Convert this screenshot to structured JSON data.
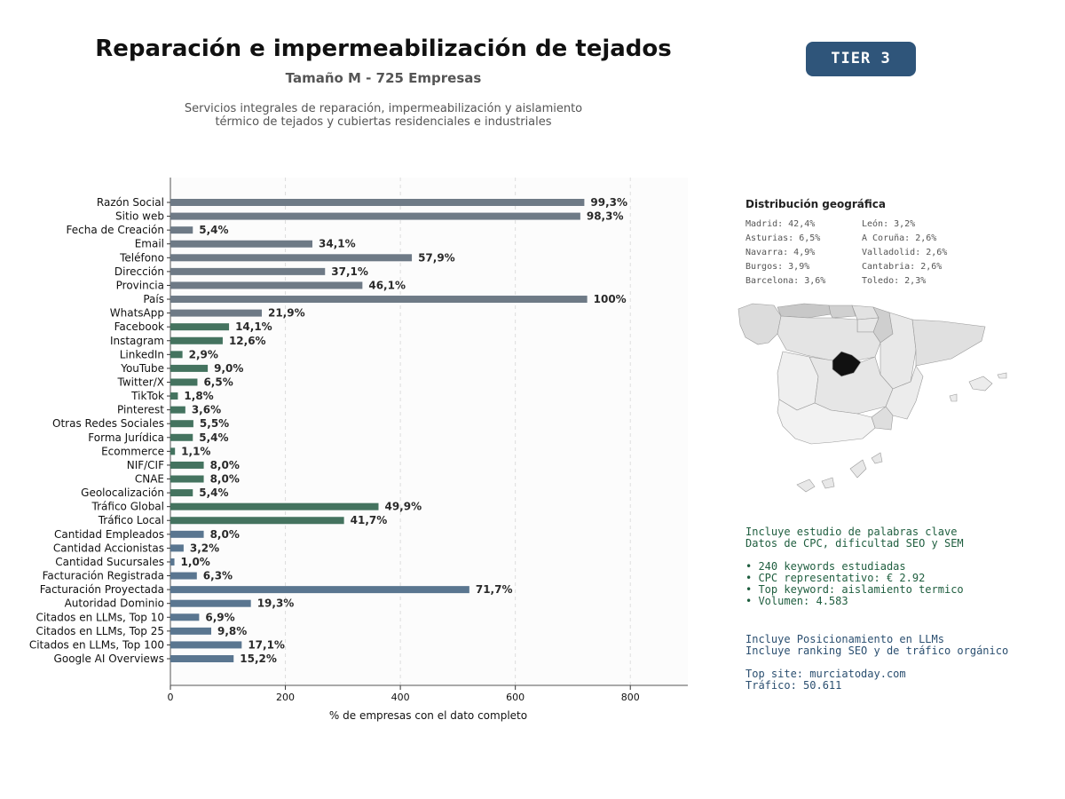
{
  "header": {
    "title": "Reparación e impermeabilización de tejados",
    "subtitle": "Tamaño M - 725 Empresas",
    "description_lines": [
      "Servicios integrales de reparación, impermeabilización y aislamiento",
      "térmico de tejados y cubiertas residenciales e industriales"
    ],
    "tier_badge": "TIER 3"
  },
  "colors": {
    "group_contact": "#6e7a86",
    "group_social_legal": "#44735f",
    "group_business": "#5a7690",
    "badge": "#2f557a",
    "map_highlight": "#111111"
  },
  "chart_data": {
    "type": "bar",
    "orientation": "horizontal",
    "xlabel": "% de empresas con el dato completo",
    "xlim": [
      0,
      900
    ],
    "xticks": [
      0,
      200,
      400,
      600,
      800
    ],
    "grid": "vertical dashed",
    "categories": [
      "Razón Social",
      "Sitio web",
      "Fecha de Creación",
      "Email",
      "Teléfono",
      "Dirección",
      "Provincia",
      "País",
      "WhatsApp",
      "Facebook",
      "Instagram",
      "LinkedIn",
      "YouTube",
      "Twitter/X",
      "TikTok",
      "Pinterest",
      "Otras Redes Sociales",
      "Forma Jurídica",
      "Ecommerce",
      "NIF/CIF",
      "CNAE",
      "Geolocalización",
      "Tráfico Global",
      "Tráfico Local",
      "Cantidad Empleados",
      "Cantidad Accionistas",
      "Cantidad Sucursales",
      "Facturación Registrada",
      "Facturación Proyectada",
      "Autoridad Dominio",
      "Citados en LLMs, Top 10",
      "Citados en LLMs, Top 25",
      "Citados en LLMs, Top 100",
      "Google AI Overviews"
    ],
    "values": [
      720,
      713,
      39,
      247,
      420,
      269,
      334,
      725,
      159,
      102,
      91,
      21,
      65,
      47,
      13,
      26,
      40,
      39,
      8,
      58,
      58,
      39,
      362,
      302,
      58,
      23,
      7,
      46,
      520,
      140,
      50,
      71,
      124,
      110
    ],
    "value_labels": [
      "99,3%",
      "98,3%",
      "5,4%",
      "34,1%",
      "57,9%",
      "37,1%",
      "46,1%",
      "100%",
      "21,9%",
      "14,1%",
      "12,6%",
      "2,9%",
      "9,0%",
      "6,5%",
      "1,8%",
      "3,6%",
      "5,5%",
      "5,4%",
      "1,1%",
      "8,0%",
      "8,0%",
      "5,4%",
      "49,9%",
      "41,7%",
      "8,0%",
      "3,2%",
      "1,0%",
      "6,3%",
      "71,7%",
      "19,3%",
      "6,9%",
      "9,8%",
      "17,1%",
      "15,2%"
    ],
    "groups": [
      "contact",
      "contact",
      "contact",
      "contact",
      "contact",
      "contact",
      "contact",
      "contact",
      "contact",
      "social_legal",
      "social_legal",
      "social_legal",
      "social_legal",
      "social_legal",
      "social_legal",
      "social_legal",
      "social_legal",
      "social_legal",
      "social_legal",
      "social_legal",
      "social_legal",
      "social_legal",
      "social_legal",
      "social_legal",
      "business",
      "business",
      "business",
      "business",
      "business",
      "business",
      "business",
      "business",
      "business",
      "business"
    ]
  },
  "geo": {
    "title": "Distribución geográfica",
    "col1": [
      "Madrid: 42,4%",
      "Asturias: 6,5%",
      "Navarra: 4,9%",
      "Burgos: 3,9%",
      "Barcelona: 3,6%"
    ],
    "col2": [
      "León: 3,2%",
      "A Coruña: 2,6%",
      "Valladolid: 2,6%",
      "Cantabria: 2,6%",
      "Toledo: 2,3%"
    ],
    "highlight_region": "Madrid"
  },
  "keywords": {
    "lines": [
      "Incluye estudio de palabras clave",
      "Datos de CPC, dificultad SEO y SEM",
      "",
      "• 240 keywords estudiadas",
      "• CPC representativo: € 2.92",
      "• Top keyword: aislamiento termico",
      "• Volumen: 4.583"
    ]
  },
  "llm": {
    "lines": [
      "Incluye Posicionamiento en LLMs",
      "Incluye ranking SEO y de tráfico orgánico",
      "",
      "Top site: murciatoday.com",
      "Tráfico: 50.611"
    ]
  }
}
